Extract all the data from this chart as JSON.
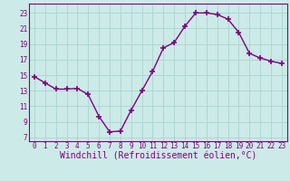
{
  "x": [
    0,
    1,
    2,
    3,
    4,
    5,
    6,
    7,
    8,
    9,
    10,
    11,
    12,
    13,
    14,
    15,
    16,
    17,
    18,
    19,
    20,
    21,
    22,
    23
  ],
  "y": [
    14.8,
    14.0,
    13.2,
    13.2,
    13.3,
    12.5,
    9.7,
    7.7,
    7.8,
    10.5,
    13.0,
    15.5,
    18.5,
    19.2,
    21.3,
    23.0,
    23.0,
    22.8,
    22.2,
    20.5,
    17.8,
    17.2,
    16.8,
    16.5
  ],
  "line_color": "#800080",
  "marker": "+",
  "marker_size": 4,
  "bg_color": "#cceae7",
  "grid_color": "#aad4d0",
  "xlabel": "Windchill (Refroidissement éolien,°C)",
  "xlabel_color": "#800080",
  "yticks": [
    7,
    9,
    11,
    13,
    15,
    17,
    19,
    21,
    23
  ],
  "xticks": [
    0,
    1,
    2,
    3,
    4,
    5,
    6,
    7,
    8,
    9,
    10,
    11,
    12,
    13,
    14,
    15,
    16,
    17,
    18,
    19,
    20,
    21,
    22,
    23
  ],
  "ylim": [
    6.5,
    24.2
  ],
  "xlim": [
    -0.5,
    23.5
  ],
  "tick_color": "#800080",
  "tick_fontsize": 5.5,
  "xlabel_fontsize": 7.0,
  "spine_color": "#800080",
  "linewidth": 1.0
}
